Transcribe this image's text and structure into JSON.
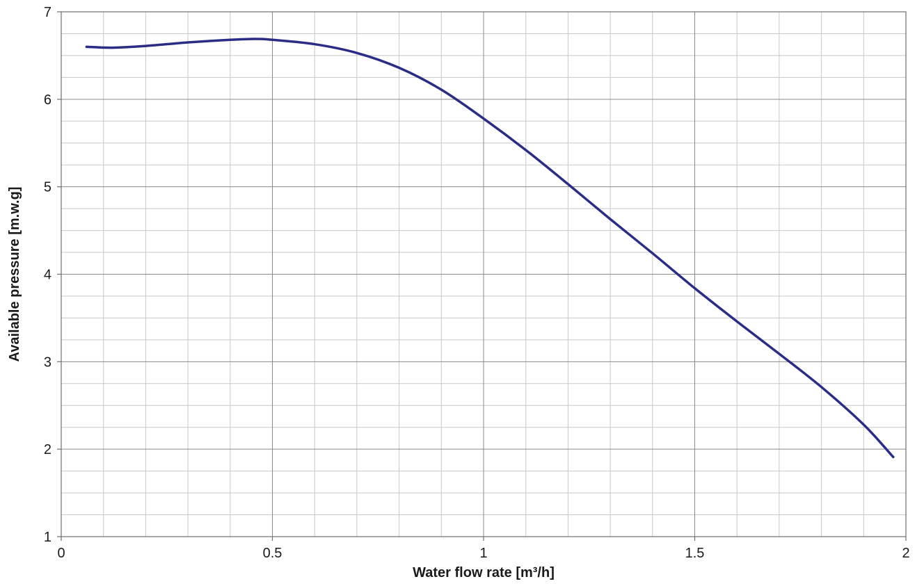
{
  "chart_data": {
    "type": "line",
    "xlabel": "Water flow rate [m³/h]",
    "ylabel": "Available pressure [m.w.g]",
    "xlim": [
      0,
      2
    ],
    "ylim": [
      1,
      7
    ],
    "x_ticks": [
      0,
      0.5,
      1,
      1.5,
      2
    ],
    "x_tick_labels": [
      "0",
      "0.5",
      "1",
      "1.5",
      "2"
    ],
    "y_ticks": [
      1,
      2,
      3,
      4,
      5,
      6,
      7
    ],
    "y_tick_labels": [
      "1",
      "2",
      "3",
      "4",
      "5",
      "6",
      "7"
    ],
    "x_minor_step": 0.1,
    "y_minor_step": 0.25,
    "grid": true,
    "series": [
      {
        "color": "#2b2c86",
        "x": [
          0.06,
          0.12,
          0.2,
          0.3,
          0.4,
          0.46,
          0.5,
          0.6,
          0.7,
          0.8,
          0.9,
          1.0,
          1.1,
          1.2,
          1.3,
          1.4,
          1.5,
          1.6,
          1.7,
          1.8,
          1.9,
          1.97
        ],
        "y": [
          6.6,
          6.59,
          6.61,
          6.65,
          6.68,
          6.69,
          6.68,
          6.63,
          6.53,
          6.36,
          6.11,
          5.78,
          5.42,
          5.03,
          4.63,
          4.24,
          3.84,
          3.46,
          3.09,
          2.71,
          2.28,
          1.91
        ]
      }
    ]
  }
}
